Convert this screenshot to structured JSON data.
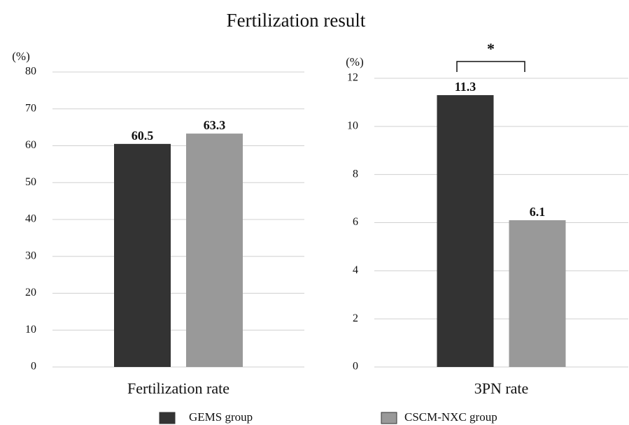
{
  "title": "Fertilization result",
  "chart_data": [
    {
      "type": "bar",
      "y_unit": "(%)",
      "categories": [
        "Fertilization rate"
      ],
      "series": [
        {
          "name": "GEMS group",
          "color": "#333333",
          "values": [
            60.5
          ]
        },
        {
          "name": "CSCM-NXC group",
          "color": "#999999",
          "values": [
            63.3
          ]
        }
      ],
      "ylim": [
        0,
        80
      ],
      "yticks": [
        0,
        10,
        20,
        30,
        40,
        50,
        60,
        70,
        80
      ],
      "grid": true
    },
    {
      "type": "bar",
      "y_unit": "(%)",
      "categories": [
        "3PN rate"
      ],
      "series": [
        {
          "color": "#333333",
          "values": [
            11.3
          ]
        },
        {
          "color": "#999999",
          "values": [
            6.1
          ]
        }
      ],
      "ylim": [
        0,
        12
      ],
      "yticks": [
        0,
        2,
        4,
        6,
        8,
        10,
        12
      ],
      "grid": true,
      "annotation": "*"
    }
  ]
}
